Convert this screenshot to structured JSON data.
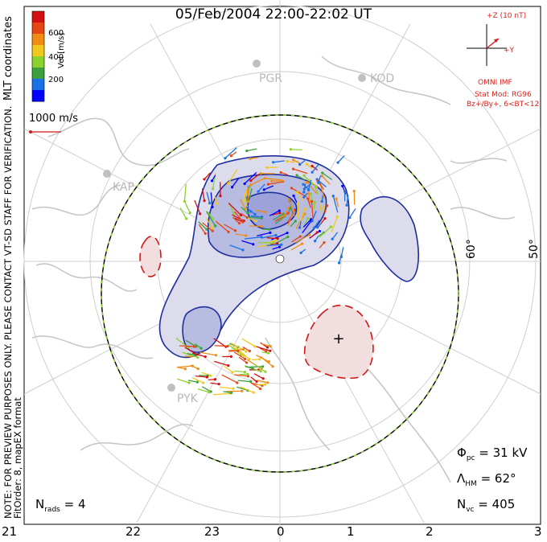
{
  "title": "05/Feb/2004 22:00-22:02 UT",
  "colorbar": {
    "label": "Vel [m/s]",
    "ticks": [
      "600",
      "400",
      "200"
    ],
    "colors": [
      "#0000ff",
      "#1a70e6",
      "#3ca03c",
      "#8cd22d",
      "#f0c81e",
      "#f08c14",
      "#e64614",
      "#d21010"
    ]
  },
  "coordinates_label": "MLT coordinates",
  "velocity_scale": "1000 m/s",
  "imf": {
    "z_label": "+Z (10 nT)",
    "y_label": "+Y",
    "source": "OMNI IMF",
    "stat_mod": "Stat Mod: RG96",
    "condition": "Bz+/By+, 6<BT<12"
  },
  "sites": [
    "PGR",
    "KOD",
    "KAP",
    "PYK"
  ],
  "latitude_labels": [
    "60°",
    "50°"
  ],
  "mlt_labels": [
    "21",
    "22",
    "23",
    "0",
    "1",
    "2",
    "3"
  ],
  "notes": {
    "preview": "NOTE: FOR PREVIEW PURPOSES ONLY. PLEASE CONTACT VT-SD STAFF FOR VERIFICATION.",
    "fit": "FitOrder: 8,  mapEX format"
  },
  "stats": {
    "phi_pc": "Φ",
    "phi_sub": "pc",
    "phi_val": "= 31 kV",
    "lambda": "Λ",
    "lambda_sub": "HM",
    "lambda_val": "= 62°",
    "nvc": "N",
    "nvc_sub": "vc",
    "nvc_val": "= 405",
    "nrads": "N",
    "nrads_sub": "rads",
    "nrads_val": "= 4"
  }
}
